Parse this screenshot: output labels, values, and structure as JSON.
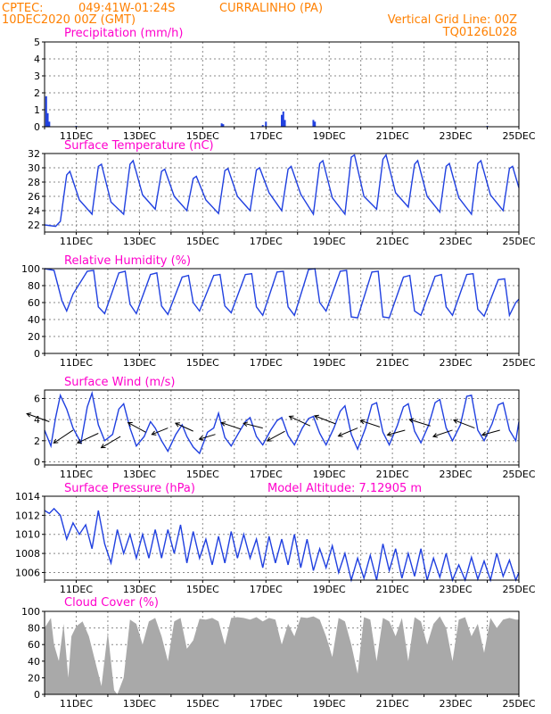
{
  "header": {
    "source": "CPTEC:",
    "location_coords": "049:41W-01:24S",
    "location_name": "CURRALINHO (PA)",
    "date": "10DEC2020 00Z (GMT)",
    "grid_note": "Vertical Grid Line: 00Z",
    "code": "TQ0126L028"
  },
  "colors": {
    "header": "#ff8000",
    "title": "#ff00cc",
    "series": "#2040e0",
    "cloud": "#a9a9a9",
    "arrow": "#000000"
  },
  "chart_data": [
    {
      "id": "precip",
      "type": "bar",
      "title": "Precipitation (mm/h)",
      "x_tick_labels": [
        "11DEC",
        "13DEC",
        "15DEC",
        "17DEC",
        "19DEC",
        "21DEC",
        "23DEC",
        "25DEC"
      ],
      "x_range_days": [
        10,
        25
      ],
      "ylim": [
        0,
        5
      ],
      "y_ticks": [
        0,
        1,
        2,
        3,
        4,
        5
      ],
      "x": [
        10.05,
        10.1,
        10.15,
        11.0,
        15.6,
        15.65,
        16.9,
        17.0,
        17.5,
        17.55,
        17.6,
        18.5,
        18.55,
        24.0
      ],
      "values": [
        1.8,
        0.8,
        0.3,
        0.05,
        0.2,
        0.15,
        0.1,
        0.3,
        0.7,
        0.9,
        0.4,
        0.4,
        0.3,
        0.05
      ],
      "grid": true
    },
    {
      "id": "temp",
      "type": "line",
      "title": "Surface Temperature (nC)",
      "x_tick_labels": [
        "11DEC",
        "13DEC",
        "15DEC",
        "17DEC",
        "19DEC",
        "21DEC",
        "23DEC",
        "25DEC"
      ],
      "x_range_days": [
        10,
        25
      ],
      "ylim": [
        21,
        32
      ],
      "y_ticks": [
        22,
        24,
        26,
        28,
        30,
        32
      ],
      "x": [
        10.0,
        10.35,
        10.5,
        10.7,
        10.8,
        11.1,
        11.5,
        11.7,
        11.8,
        12.1,
        12.5,
        12.7,
        12.8,
        13.1,
        13.5,
        13.7,
        13.8,
        14.1,
        14.5,
        14.7,
        14.8,
        15.1,
        15.5,
        15.7,
        15.8,
        16.1,
        16.5,
        16.7,
        16.8,
        17.1,
        17.5,
        17.7,
        17.8,
        18.1,
        18.5,
        18.7,
        18.8,
        19.1,
        19.5,
        19.7,
        19.8,
        20.1,
        20.5,
        20.7,
        20.8,
        21.1,
        21.5,
        21.7,
        21.8,
        22.1,
        22.5,
        22.7,
        22.8,
        23.1,
        23.5,
        23.7,
        23.8,
        24.1,
        24.5,
        24.7,
        24.8,
        25.0
      ],
      "values": [
        22,
        21.8,
        22.5,
        29,
        29.5,
        25.5,
        23.5,
        30.2,
        30.5,
        25.2,
        23.5,
        30.5,
        31,
        26.2,
        24.2,
        29.5,
        29.8,
        26,
        24,
        28.5,
        28.8,
        25.5,
        23.6,
        29.6,
        29.9,
        26,
        24,
        29.7,
        30,
        26.5,
        24,
        29.8,
        30.2,
        26.3,
        23.5,
        30.6,
        31,
        25.8,
        23.5,
        31.5,
        31.8,
        26,
        24.2,
        31.2,
        31.8,
        26.5,
        24.5,
        30.5,
        31,
        26,
        23.8,
        30.2,
        30.6,
        25.8,
        23.5,
        30.6,
        31,
        26.2,
        24,
        29.9,
        30.2,
        27.2
      ],
      "grid": true
    },
    {
      "id": "rh",
      "type": "line",
      "title": "Relative Humidity (%)",
      "x_tick_labels": [
        "11DEC",
        "13DEC",
        "15DEC",
        "17DEC",
        "19DEC",
        "21DEC",
        "23DEC",
        "25DEC"
      ],
      "x_range_days": [
        10,
        25
      ],
      "ylim": [
        0,
        100
      ],
      "y_ticks": [
        0,
        20,
        40,
        60,
        80,
        100
      ],
      "x": [
        10.0,
        10.3,
        10.55,
        10.7,
        10.9,
        11.35,
        11.55,
        11.7,
        11.9,
        12.35,
        12.55,
        12.7,
        12.9,
        13.35,
        13.55,
        13.7,
        13.9,
        14.35,
        14.55,
        14.7,
        14.9,
        15.35,
        15.55,
        15.7,
        15.9,
        16.35,
        16.55,
        16.7,
        16.9,
        17.35,
        17.55,
        17.7,
        17.9,
        18.35,
        18.55,
        18.7,
        18.9,
        19.35,
        19.55,
        19.7,
        19.9,
        20.35,
        20.55,
        20.7,
        20.9,
        21.35,
        21.55,
        21.7,
        21.9,
        22.35,
        22.55,
        22.7,
        22.9,
        23.35,
        23.55,
        23.7,
        23.9,
        24.35,
        24.55,
        24.7,
        24.9,
        25.0
      ],
      "values": [
        100,
        98,
        62,
        50,
        70,
        97,
        98,
        55,
        47,
        95,
        97,
        58,
        47,
        93,
        95,
        56,
        46,
        90,
        92,
        60,
        50,
        92,
        93,
        56,
        48,
        93,
        94,
        55,
        45,
        96,
        97,
        55,
        45,
        99,
        100,
        60,
        50,
        97,
        98,
        43,
        42,
        96,
        97,
        43,
        42,
        90,
        92,
        50,
        45,
        91,
        93,
        55,
        45,
        93,
        94,
        52,
        44,
        87,
        88,
        45,
        60,
        64
      ],
      "grid": true
    },
    {
      "id": "wind",
      "type": "line",
      "title": "Surface Wind (m/s)",
      "x_tick_labels": [
        "11DEC",
        "13DEC",
        "15DEC",
        "17DEC",
        "19DEC",
        "21DEC",
        "23DEC",
        "25DEC"
      ],
      "x_range_days": [
        10,
        25
      ],
      "ylim": [
        -0.3,
        6.8
      ],
      "y_ticks": [
        0,
        2,
        4,
        6
      ],
      "x": [
        10.0,
        10.2,
        10.35,
        10.5,
        10.7,
        10.9,
        11.15,
        11.35,
        11.5,
        11.7,
        11.9,
        12.15,
        12.35,
        12.5,
        12.7,
        12.9,
        13.15,
        13.35,
        13.5,
        13.7,
        13.9,
        14.15,
        14.35,
        14.5,
        14.7,
        14.9,
        15.15,
        15.35,
        15.5,
        15.7,
        15.9,
        16.15,
        16.35,
        16.5,
        16.7,
        16.9,
        17.15,
        17.35,
        17.5,
        17.7,
        17.9,
        18.15,
        18.35,
        18.5,
        18.7,
        18.9,
        19.15,
        19.35,
        19.5,
        19.7,
        19.9,
        20.15,
        20.35,
        20.5,
        20.7,
        20.9,
        21.15,
        21.35,
        21.5,
        21.7,
        21.9,
        22.15,
        22.35,
        22.5,
        22.7,
        22.9,
        23.15,
        23.35,
        23.5,
        23.7,
        23.9,
        24.15,
        24.35,
        24.5,
        24.7,
        24.9,
        25.0
      ],
      "values": [
        3.0,
        1.5,
        4.2,
        6.3,
        5.0,
        3.2,
        1.8,
        5.2,
        6.5,
        3.5,
        2.0,
        2.6,
        5.0,
        5.5,
        3.2,
        1.5,
        2.4,
        3.8,
        3.2,
        2.0,
        1.0,
        2.6,
        3.5,
        2.4,
        1.4,
        0.8,
        2.8,
        3.2,
        4.6,
        2.3,
        1.5,
        2.8,
        3.8,
        4.2,
        2.4,
        1.6,
        3.0,
        3.9,
        4.2,
        2.5,
        1.6,
        3.2,
        4.1,
        4.3,
        2.7,
        1.6,
        3.2,
        4.8,
        5.3,
        2.6,
        1.2,
        3.2,
        5.4,
        5.6,
        2.8,
        1.6,
        3.4,
        5.2,
        5.5,
        2.9,
        1.8,
        3.5,
        5.6,
        5.9,
        3.2,
        2.0,
        3.5,
        6.2,
        6.3,
        3.0,
        2.0,
        3.6,
        5.4,
        5.6,
        3.0,
        2.0,
        3.8
      ],
      "arrows": {
        "x": [
          10.15,
          10.9,
          11.7,
          12.4,
          13.2,
          13.9,
          14.7,
          15.4,
          16.2,
          16.9,
          17.6,
          18.4,
          19.2,
          19.9,
          20.6,
          21.4,
          22.2,
          22.9,
          23.6,
          24.4
        ],
        "y": [
          3.8,
          3.0,
          2.7,
          2.4,
          2.8,
          3.2,
          2.9,
          2.6,
          3.1,
          3.2,
          2.9,
          3.4,
          3.6,
          3.2,
          3.3,
          3.0,
          3.4,
          3.0,
          3.2,
          3.0
        ],
        "dx": [
          -1.4,
          -1.2,
          -1.3,
          -1.2,
          -1.1,
          -1.0,
          -1.1,
          -1.0,
          -1.2,
          -1.2,
          -1.1,
          -1.3,
          -1.3,
          -1.2,
          -1.2,
          -1.1,
          -1.3,
          -1.2,
          -1.3,
          -1.1
        ],
        "dy": [
          0.5,
          -0.8,
          -0.6,
          -0.7,
          0.6,
          -0.4,
          0.5,
          -0.3,
          0.4,
          0.3,
          -0.6,
          0.6,
          0.5,
          -0.5,
          0.4,
          -0.3,
          0.4,
          -0.4,
          0.5,
          -0.3
        ]
      },
      "grid": true
    },
    {
      "id": "press",
      "type": "line",
      "title": "Surface Pressure (hPa)",
      "annotation": "Model Altitude: 7.12905 m",
      "x_tick_labels": [
        "11DEC",
        "13DEC",
        "15DEC",
        "17DEC",
        "19DEC",
        "21DEC",
        "23DEC",
        "25DEC"
      ],
      "x_range_days": [
        10,
        25
      ],
      "ylim": [
        1005.2,
        1014
      ],
      "y_ticks": [
        1006,
        1008,
        1010,
        1012,
        1014
      ],
      "x": [
        10.0,
        10.15,
        10.3,
        10.5,
        10.7,
        10.9,
        11.1,
        11.3,
        11.5,
        11.7,
        11.9,
        12.1,
        12.3,
        12.5,
        12.7,
        12.9,
        13.1,
        13.3,
        13.5,
        13.7,
        13.9,
        14.1,
        14.3,
        14.5,
        14.7,
        14.9,
        15.1,
        15.3,
        15.5,
        15.7,
        15.9,
        16.1,
        16.3,
        16.5,
        16.7,
        16.9,
        17.1,
        17.3,
        17.5,
        17.7,
        17.9,
        18.1,
        18.3,
        18.5,
        18.7,
        18.9,
        19.1,
        19.3,
        19.5,
        19.7,
        19.9,
        20.1,
        20.3,
        20.5,
        20.7,
        20.9,
        21.1,
        21.3,
        21.5,
        21.7,
        21.9,
        22.1,
        22.3,
        22.5,
        22.7,
        22.9,
        23.1,
        23.3,
        23.5,
        23.7,
        23.9,
        24.1,
        24.3,
        24.5,
        24.7,
        24.9,
        25.0
      ],
      "values": [
        1012.5,
        1012.2,
        1012.7,
        1012.0,
        1009.5,
        1011.2,
        1010.0,
        1011.0,
        1008.5,
        1012.5,
        1009.0,
        1007.0,
        1010.5,
        1008.0,
        1010.0,
        1007.5,
        1010.0,
        1007.5,
        1010.5,
        1007.5,
        1010.5,
        1008.0,
        1011.0,
        1007.0,
        1010.3,
        1007.5,
        1009.5,
        1006.8,
        1009.8,
        1007.0,
        1010.3,
        1007.5,
        1010.0,
        1007.5,
        1009.5,
        1006.5,
        1009.8,
        1007.0,
        1009.5,
        1006.8,
        1010.0,
        1006.5,
        1009.5,
        1006.2,
        1008.5,
        1006.5,
        1008.8,
        1006.0,
        1008.0,
        1005.2,
        1007.5,
        1005.4,
        1007.8,
        1005.2,
        1009.0,
        1006.2,
        1008.5,
        1005.4,
        1008.0,
        1005.6,
        1008.5,
        1005.2,
        1007.5,
        1005.5,
        1008.0,
        1005.2,
        1006.8,
        1005.2,
        1007.6,
        1005.3,
        1007.2,
        1005.2,
        1008.0,
        1005.6,
        1007.3,
        1005.2,
        1006.0
      ],
      "grid": true
    },
    {
      "id": "cloud",
      "type": "area",
      "title": "Cloud Cover (%)",
      "x_tick_labels": [
        "11DEC",
        "13DEC",
        "15DEC",
        "17DEC",
        "19DEC",
        "21DEC",
        "23DEC",
        "25DEC"
      ],
      "x_range_days": [
        10,
        25
      ],
      "ylim": [
        0,
        100
      ],
      "y_ticks": [
        0,
        20,
        40,
        60,
        80,
        100
      ],
      "x": [
        10.0,
        10.2,
        10.3,
        10.45,
        10.6,
        10.75,
        10.85,
        11.0,
        11.2,
        11.4,
        11.6,
        11.8,
        12.0,
        12.2,
        12.3,
        12.5,
        12.7,
        12.9,
        13.1,
        13.3,
        13.5,
        13.7,
        13.9,
        14.1,
        14.3,
        14.5,
        14.7,
        14.9,
        15.1,
        15.3,
        15.5,
        15.7,
        15.9,
        16.1,
        16.3,
        16.5,
        16.7,
        16.9,
        17.1,
        17.3,
        17.5,
        17.7,
        17.9,
        18.1,
        18.3,
        18.5,
        18.7,
        18.9,
        19.1,
        19.3,
        19.5,
        19.7,
        19.9,
        20.1,
        20.3,
        20.5,
        20.7,
        20.9,
        21.1,
        21.3,
        21.5,
        21.7,
        21.9,
        22.1,
        22.3,
        22.5,
        22.7,
        22.9,
        23.1,
        23.3,
        23.5,
        23.7,
        23.9,
        24.1,
        24.3,
        24.5,
        24.7,
        24.9,
        25.0
      ],
      "values": [
        80,
        92,
        60,
        40,
        85,
        20,
        70,
        82,
        88,
        70,
        40,
        10,
        75,
        5,
        0,
        20,
        90,
        85,
        60,
        88,
        92,
        70,
        40,
        88,
        92,
        55,
        65,
        91,
        90,
        92,
        88,
        60,
        92,
        93,
        92,
        90,
        93,
        88,
        92,
        90,
        60,
        85,
        70,
        93,
        92,
        94,
        90,
        70,
        45,
        92,
        88,
        60,
        25,
        93,
        90,
        40,
        92,
        88,
        70,
        92,
        40,
        93,
        88,
        60,
        85,
        94,
        80,
        40,
        90,
        93,
        70,
        85,
        50,
        92,
        80,
        90,
        92,
        90,
        90
      ],
      "grid": true
    }
  ]
}
